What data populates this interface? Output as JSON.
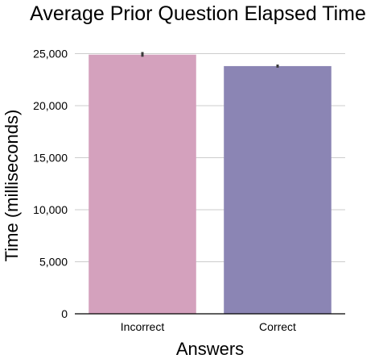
{
  "chart_data": {
    "type": "bar",
    "title": "Average Prior Question Elapsed Time",
    "xlabel": "Answers",
    "ylabel": "Time (milliseconds)",
    "categories": [
      "Incorrect",
      "Correct"
    ],
    "values": [
      24900,
      23800
    ],
    "error_bars": [
      {
        "low": 24700,
        "high": 25150
      },
      {
        "low": 23650,
        "high": 23950
      }
    ],
    "colors": [
      "#d4a1bd",
      "#8b85b4"
    ],
    "error_bar_color": "#3a3a3a",
    "ylim": [
      0,
      25500
    ],
    "yticks": [
      0,
      5000,
      10000,
      15000,
      20000,
      25000
    ],
    "ytick_labels": [
      "0",
      "5,000",
      "10,000",
      "15,000",
      "20,000",
      "25,000"
    ],
    "grid": true,
    "grid_color": "#cccccc",
    "legend": false
  }
}
